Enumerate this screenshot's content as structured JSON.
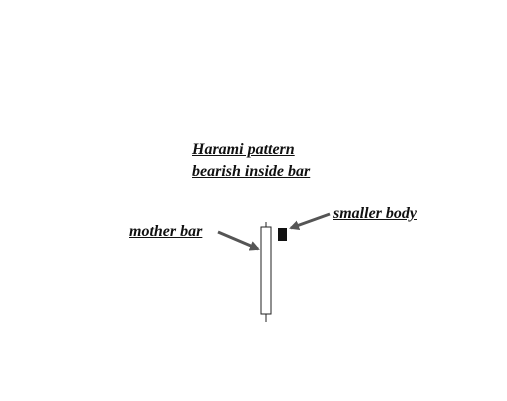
{
  "title": {
    "line1": "Harami pattern",
    "line2": "bearish inside bar"
  },
  "labels": {
    "mother_bar": "mother bar",
    "smaller_body": "smaller body"
  },
  "colors": {
    "text": "#111111",
    "arrow": "#555555",
    "candle_outline": "#222222",
    "inside_body": "#111111"
  }
}
